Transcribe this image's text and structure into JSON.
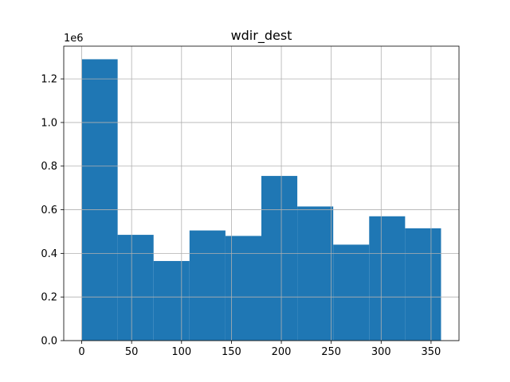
{
  "chart_data": {
    "type": "histogram",
    "title": "wdir_dest",
    "xlabel": "",
    "ylabel": "",
    "y_offset_label": "1e6",
    "xlim": [
      -18,
      378
    ],
    "ylim": [
      0,
      1.35
    ],
    "grid": true,
    "bar_color": "#1f77b4",
    "grid_color": "#b0b0b0",
    "bins": [
      {
        "x0": 0,
        "x1": 36,
        "value": 1.29
      },
      {
        "x0": 36,
        "x1": 72,
        "value": 0.485
      },
      {
        "x0": 72,
        "x1": 108,
        "value": 0.365
      },
      {
        "x0": 108,
        "x1": 144,
        "value": 0.505
      },
      {
        "x0": 144,
        "x1": 180,
        "value": 0.48
      },
      {
        "x0": 180,
        "x1": 216,
        "value": 0.755
      },
      {
        "x0": 216,
        "x1": 252,
        "value": 0.615
      },
      {
        "x0": 252,
        "x1": 288,
        "value": 0.44
      },
      {
        "x0": 288,
        "x1": 324,
        "value": 0.57
      },
      {
        "x0": 324,
        "x1": 360,
        "value": 0.515
      }
    ],
    "x_ticks": [
      0,
      50,
      100,
      150,
      200,
      250,
      300,
      350
    ],
    "x_tick_labels": [
      "0",
      "50",
      "100",
      "150",
      "200",
      "250",
      "300",
      "350"
    ],
    "y_ticks": [
      0,
      0.2,
      0.4,
      0.6,
      0.8,
      1.0,
      1.2
    ],
    "y_tick_labels": [
      "0.0",
      "0.2",
      "0.4",
      "0.6",
      "0.8",
      "1.0",
      "1.2"
    ]
  }
}
